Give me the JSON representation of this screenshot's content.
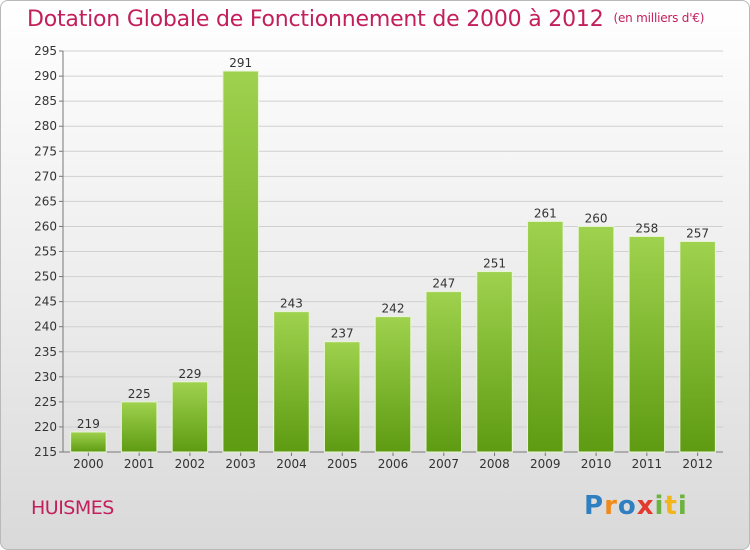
{
  "header": {
    "title": "Dotation Globale de Fonctionnement de 2000 à 2012",
    "subtitle": "(en milliers d'€)"
  },
  "footer": {
    "commune": "HUISMES",
    "logo_text": "Proxiti",
    "logo_letters": [
      "P",
      "r",
      "o",
      "x",
      "i",
      "t",
      "i"
    ]
  },
  "colors": {
    "title": "#c21f5b",
    "bar_light": "#9fd24e",
    "bar_dark": "#5e9b12",
    "grid": "#d0d0d0",
    "axis_text": "#333333"
  },
  "chart_data": {
    "type": "bar",
    "title": "Dotation Globale de Fonctionnement de 2000 à 2012",
    "subtitle": "(en milliers d'€)",
    "xlabel": "",
    "ylabel": "",
    "categories": [
      "2000",
      "2001",
      "2002",
      "2003",
      "2004",
      "2005",
      "2006",
      "2007",
      "2008",
      "2009",
      "2010",
      "2011",
      "2012"
    ],
    "values": [
      219,
      225,
      229,
      291,
      243,
      237,
      242,
      247,
      251,
      261,
      260,
      258,
      257
    ],
    "ylim": [
      215,
      295
    ],
    "yticks": [
      215,
      220,
      225,
      230,
      235,
      240,
      245,
      250,
      255,
      260,
      265,
      270,
      275,
      280,
      285,
      290,
      295
    ],
    "grid": true,
    "legend": "none",
    "data_labels": true
  }
}
